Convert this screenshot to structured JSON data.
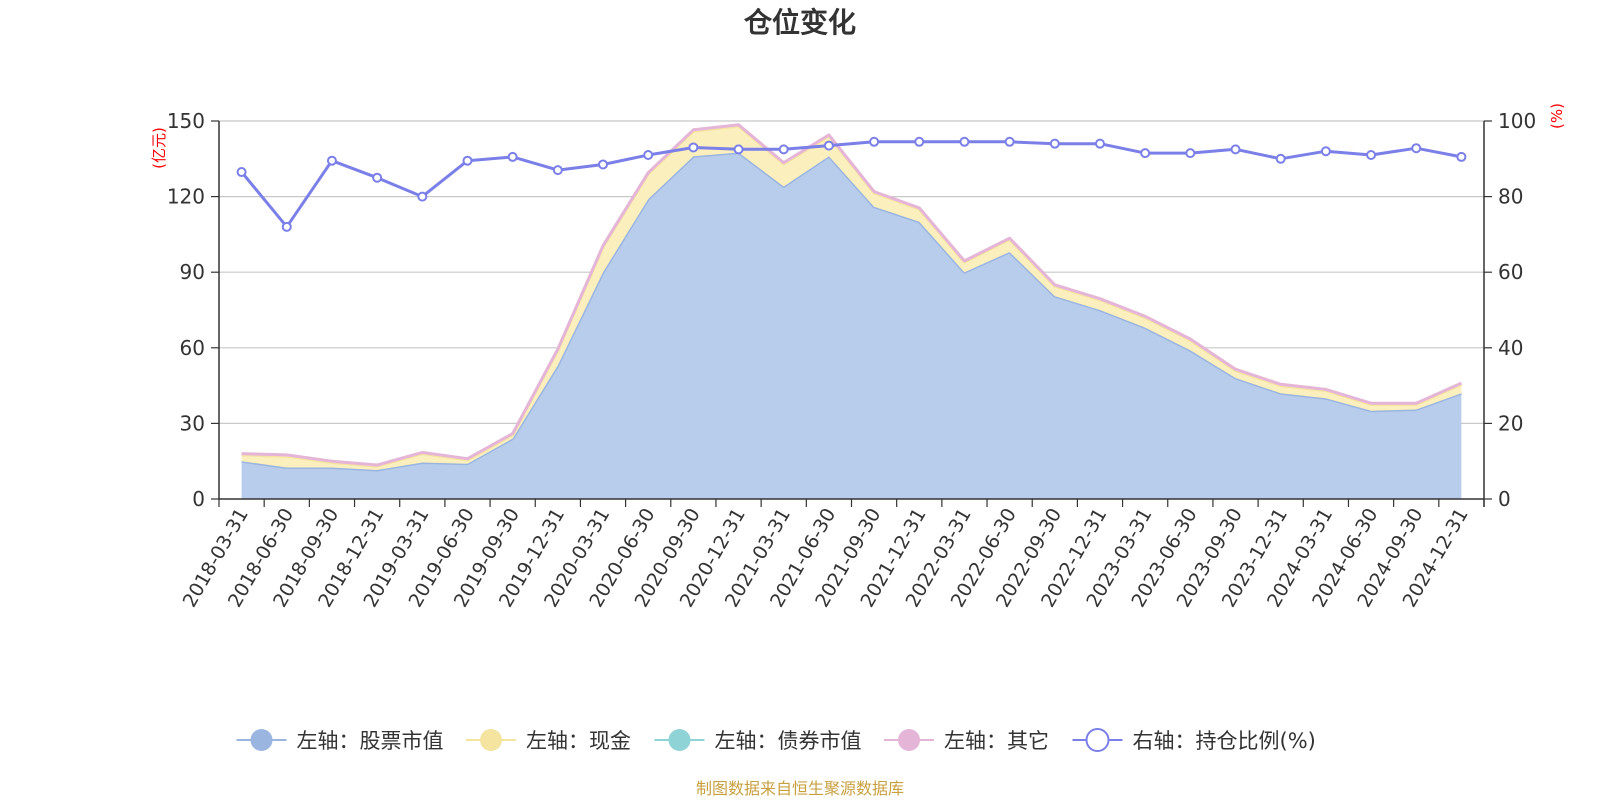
{
  "chart_data": {
    "type": "area",
    "title": "仓位变化",
    "left_unit": "(亿元)",
    "right_unit": "(%)",
    "categories": [
      "2018-03-31",
      "2018-06-30",
      "2018-09-30",
      "2018-12-31",
      "2019-03-31",
      "2019-06-30",
      "2019-09-30",
      "2019-12-31",
      "2020-03-31",
      "2020-06-30",
      "2020-09-30",
      "2020-12-31",
      "2021-03-31",
      "2021-06-30",
      "2021-09-30",
      "2021-12-31",
      "2022-03-31",
      "2022-06-30",
      "2022-09-30",
      "2022-12-31",
      "2023-03-31",
      "2023-06-30",
      "2023-09-30",
      "2023-12-31",
      "2024-03-31",
      "2024-06-30",
      "2024-09-30",
      "2024-12-31"
    ],
    "left_axis": {
      "min": 0,
      "max": 150,
      "ticks": [
        "0",
        "30",
        "60",
        "90",
        "120",
        "150"
      ]
    },
    "right_axis": {
      "min": 0,
      "max": 100,
      "ticks": [
        "0",
        "20",
        "40",
        "60",
        "80",
        "100"
      ]
    },
    "series": [
      {
        "name": "左轴：股票市值",
        "axis": "left",
        "stack": true,
        "color": "#9ab5e0",
        "fill": "#b8cdeb",
        "values": [
          15,
          12.5,
          12.5,
          11.5,
          14.5,
          14,
          24,
          53,
          90,
          119,
          136,
          137.5,
          124,
          136,
          116,
          110,
          90,
          98,
          80.5,
          75,
          68,
          59,
          48,
          42,
          40,
          35,
          35.5,
          42
        ]
      },
      {
        "name": "左轴：现金",
        "axis": "left",
        "stack": true,
        "color": "#f5e3a0",
        "fill": "#fbefbe",
        "values": [
          2.5,
          4.5,
          2,
          1.5,
          3.5,
          1.5,
          1.5,
          6,
          10,
          10,
          10,
          10.5,
          9,
          8,
          5.5,
          5,
          4,
          5,
          4,
          4,
          4,
          4,
          3,
          3,
          3,
          2.5,
          2,
          3.5
        ]
      },
      {
        "name": "左轴：债券市值",
        "axis": "left",
        "stack": true,
        "color": "#8fd3d6",
        "fill": "#a8dfe2",
        "values": [
          0,
          0,
          0,
          0,
          0,
          0,
          0,
          0,
          0,
          0,
          0,
          0,
          0,
          0,
          0,
          0,
          0,
          0,
          0,
          0,
          0,
          0,
          0,
          0,
          0,
          0,
          0,
          0
        ]
      },
      {
        "name": "左轴：其它",
        "axis": "left",
        "stack": true,
        "color": "#e5b5d8",
        "fill": "#efcbe5",
        "values": [
          0.5,
          0.5,
          0.5,
          0.5,
          0.5,
          0.5,
          0.5,
          0.5,
          0.5,
          0.5,
          0.5,
          0.5,
          0.5,
          0.5,
          0.5,
          0.5,
          0.5,
          0.5,
          0.5,
          0.5,
          0.5,
          0.5,
          0.5,
          0.5,
          0.5,
          0.5,
          0.5,
          0.5
        ]
      },
      {
        "name": "右轴：持仓比例(%)",
        "axis": "right",
        "stack": false,
        "color": "#7b7fe8",
        "values": [
          86.5,
          72,
          89.5,
          85,
          80,
          89.5,
          90.5,
          87,
          88.5,
          91,
          93,
          92.5,
          92.5,
          93.5,
          94.5,
          94.5,
          94.5,
          94.5,
          94,
          94,
          91.5,
          91.5,
          92.5,
          90,
          92,
          91,
          92.8,
          90.5
        ]
      }
    ],
    "grid": true,
    "legend_position": "bottom"
  },
  "footer": {
    "source": "制图数据来自恒生聚源数据库"
  }
}
